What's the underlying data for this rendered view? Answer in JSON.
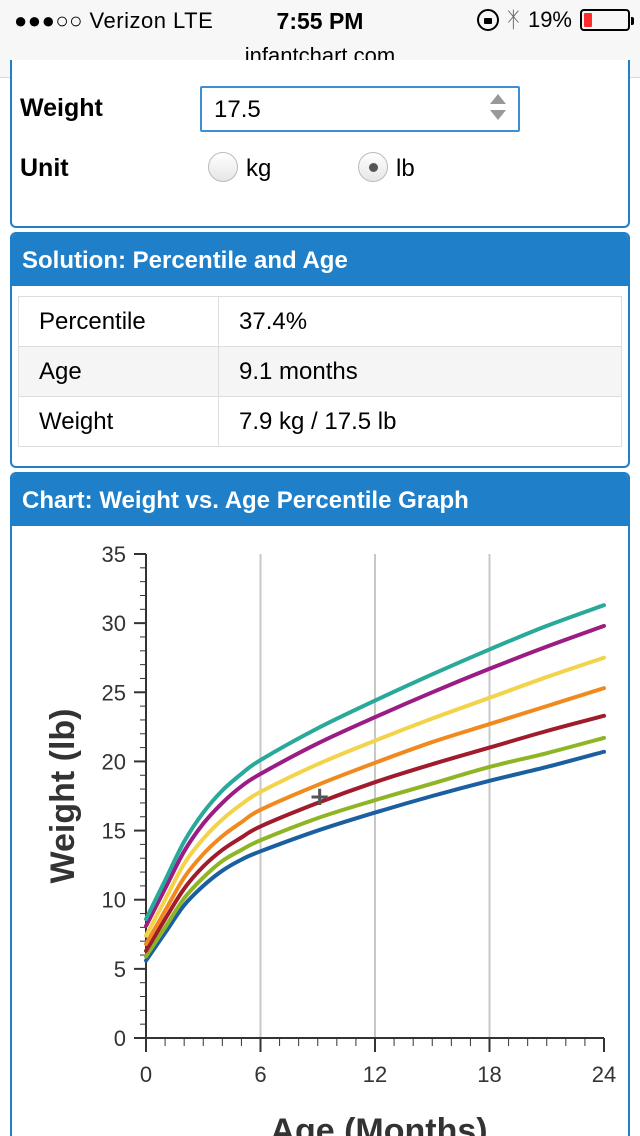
{
  "status_bar": {
    "carrier": "●●●○○ Verizon   LTE",
    "time": "7:55 PM",
    "battery": "19%",
    "bluetooth_icon": "bluetooth-icon"
  },
  "browser": {
    "url": "infantchart.com"
  },
  "form": {
    "weight_label": "Weight",
    "weight_value": "17.5",
    "unit_label": "Unit",
    "unit_options": [
      "kg",
      "lb"
    ],
    "unit_selected": "lb"
  },
  "solution": {
    "title": "Solution: Percentile and Age",
    "rows": [
      {
        "label": "Percentile",
        "value": "37.4%"
      },
      {
        "label": "Age",
        "value": "9.1 months"
      },
      {
        "label": "Weight",
        "value": "7.9 kg / 17.5 lb"
      }
    ]
  },
  "chart_section": {
    "title": "Chart: Weight vs. Age Percentile Graph"
  },
  "chart_data": {
    "type": "line",
    "xlabel": "Age (Months)",
    "ylabel": "Weight (lb)",
    "xlim": [
      0,
      24
    ],
    "ylim": [
      0,
      35
    ],
    "xticks": [
      0,
      6,
      12,
      18,
      24
    ],
    "yticks": [
      0,
      5,
      10,
      15,
      20,
      25,
      30,
      35
    ],
    "grid": "vertical lines at 6, 12, 18",
    "x": [
      0,
      1,
      2,
      3,
      4,
      5,
      6,
      9,
      12,
      15,
      18,
      21,
      24
    ],
    "series": [
      {
        "color": "#1a5fa0",
        "values": [
          5.6,
          7.6,
          9.6,
          11.0,
          12.1,
          12.9,
          13.5,
          15.0,
          16.3,
          17.5,
          18.6,
          19.6,
          20.7
        ]
      },
      {
        "color": "#8fb524",
        "values": [
          5.9,
          8.0,
          10.1,
          11.6,
          12.8,
          13.6,
          14.3,
          15.9,
          17.2,
          18.4,
          19.6,
          20.6,
          21.7
        ]
      },
      {
        "color": "#a01c2c",
        "values": [
          6.3,
          8.6,
          10.8,
          12.4,
          13.6,
          14.5,
          15.3,
          17.0,
          18.5,
          19.8,
          21.0,
          22.2,
          23.3
        ]
      },
      {
        "color": "#f08a1e",
        "values": [
          6.8,
          9.2,
          11.6,
          13.3,
          14.6,
          15.6,
          16.5,
          18.3,
          19.9,
          21.4,
          22.7,
          24.0,
          25.3
        ]
      },
      {
        "color": "#f3d34a",
        "values": [
          7.4,
          10.0,
          12.6,
          14.4,
          15.8,
          16.9,
          17.8,
          19.8,
          21.5,
          23.1,
          24.6,
          26.1,
          27.5
        ]
      },
      {
        "color": "#9b1c84",
        "values": [
          8.1,
          10.8,
          13.5,
          15.5,
          17.0,
          18.2,
          19.1,
          21.3,
          23.2,
          25.0,
          26.7,
          28.3,
          29.8
        ]
      },
      {
        "color": "#28a99a",
        "values": [
          8.6,
          11.4,
          14.2,
          16.3,
          17.9,
          19.1,
          20.1,
          22.4,
          24.4,
          26.3,
          28.1,
          29.8,
          31.3
        ]
      }
    ],
    "marker": {
      "x": 9.1,
      "y": 17.5,
      "symbol": "+"
    }
  }
}
